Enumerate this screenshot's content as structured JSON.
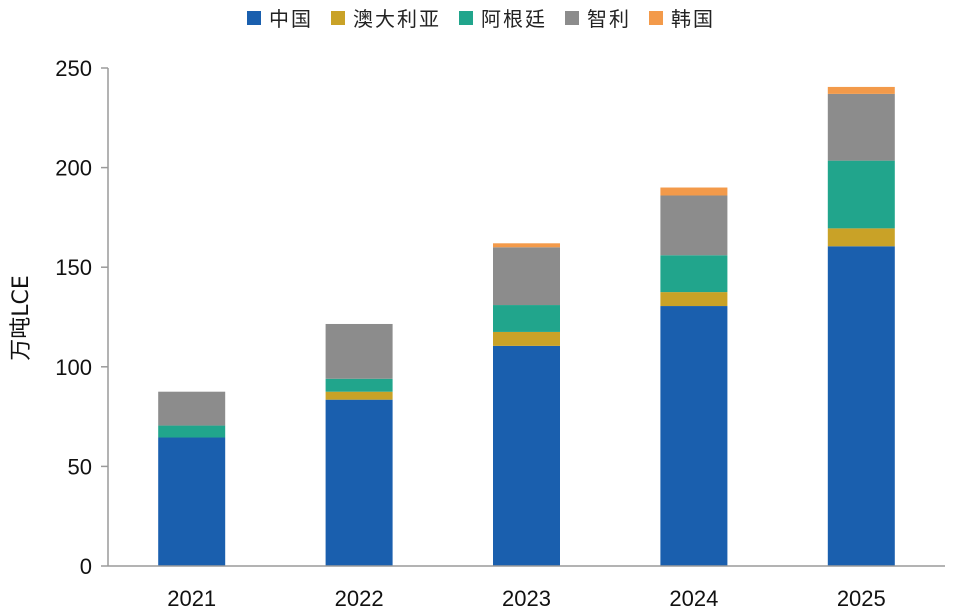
{
  "chart_data": {
    "type": "bar",
    "stacked": true,
    "title": "",
    "xlabel": "",
    "ylabel": "万吨LCE",
    "categories": [
      "2021",
      "2022",
      "2023",
      "2024",
      "2025"
    ],
    "ylim": [
      0,
      250
    ],
    "yticks": [
      0,
      50,
      100,
      150,
      200,
      250
    ],
    "grid": false,
    "legend_position": "top",
    "series": [
      {
        "name": "中国",
        "color": "#1a5fae",
        "values": [
          64.5,
          83.5,
          110.5,
          130.5,
          160.5
        ]
      },
      {
        "name": "澳大利亚",
        "color": "#c9a227",
        "values": [
          0,
          4,
          7,
          7,
          9
        ]
      },
      {
        "name": "阿根廷",
        "color": "#21a58c",
        "values": [
          6,
          6.5,
          13.5,
          18.5,
          34
        ]
      },
      {
        "name": "智利",
        "color": "#8c8c8c",
        "values": [
          17,
          27.5,
          29,
          30,
          33.5
        ]
      },
      {
        "name": "韩国",
        "color": "#f39a4a",
        "values": [
          0,
          0,
          2,
          4,
          3.5
        ]
      }
    ]
  }
}
